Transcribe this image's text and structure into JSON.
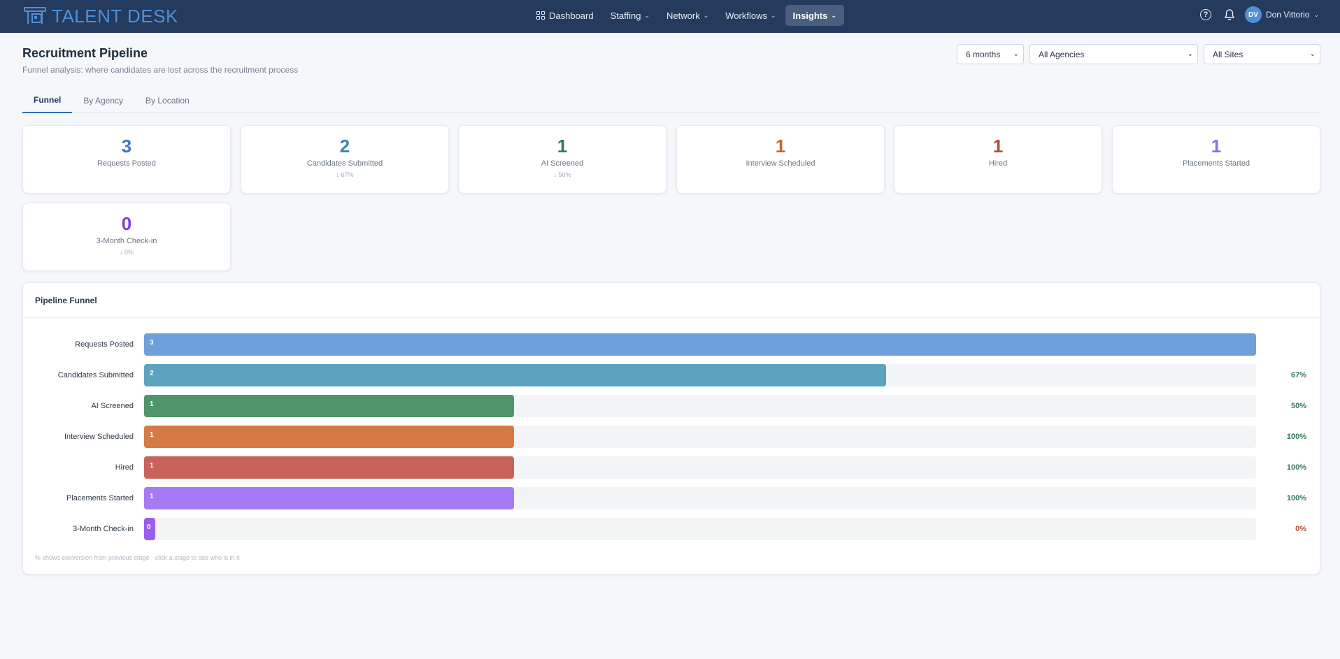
{
  "app": {
    "name": "TALENT DESK"
  },
  "nav": {
    "items": [
      {
        "label": "Dashboard",
        "icon": "grid-icon",
        "has_dropdown": false,
        "active": false
      },
      {
        "label": "Staffing",
        "has_dropdown": true,
        "active": false
      },
      {
        "label": "Network",
        "has_dropdown": true,
        "active": false
      },
      {
        "label": "Workflows",
        "has_dropdown": true,
        "active": false
      },
      {
        "label": "Insights",
        "has_dropdown": true,
        "active": true
      }
    ],
    "user": {
      "initials": "DV",
      "name": "Don Vittorio"
    },
    "help_icon": "question-circle-icon",
    "notification_icon": "bell-icon"
  },
  "page": {
    "title": "Recruitment Pipeline",
    "subtitle": "Funnel analysis: where candidates are lost across the recruitment process"
  },
  "filters": {
    "period": "6 months",
    "agency": "All Agencies",
    "site": "All Sites"
  },
  "tabs": [
    {
      "label": "Funnel",
      "active": true
    },
    {
      "label": "By Agency",
      "active": false
    },
    {
      "label": "By Location",
      "active": false
    }
  ],
  "stats": [
    {
      "value": "3",
      "label": "Requests Posted",
      "delta": "",
      "color": "#3f7bbf"
    },
    {
      "value": "2",
      "label": "Candidates Submitted",
      "delta": "↓ 67%",
      "color": "#3b8aa5"
    },
    {
      "value": "1",
      "label": "AI Screened",
      "delta": "↓ 50%",
      "color": "#2f7a52"
    },
    {
      "value": "1",
      "label": "Interview Scheduled",
      "delta": "",
      "color": "#c9652b"
    },
    {
      "value": "1",
      "label": "Hired",
      "delta": "",
      "color": "#b54a3e"
    },
    {
      "value": "1",
      "label": "Placements Started",
      "delta": "",
      "color": "#8c6fe0"
    },
    {
      "value": "0",
      "label": "3-Month Check-in",
      "delta": "↓ 0%",
      "color": "#7b3fd6"
    }
  ],
  "funnel": {
    "title": "Pipeline Funnel",
    "note": "% shows conversion from previous stage · click a stage to see who is in it",
    "stages": [
      {
        "label": "Requests Posted",
        "value": 3,
        "display": "3",
        "fill": 1.0,
        "pct": "",
        "color": "#6fa0dc",
        "pct_color": "#2f7a52"
      },
      {
        "label": "Candidates Submitted",
        "value": 2,
        "display": "2",
        "fill": 0.667,
        "pct": "67%",
        "color": "#5aa5bd",
        "pct_color": "#2f7a52"
      },
      {
        "label": "AI Screened",
        "value": 1,
        "display": "1",
        "fill": 0.333,
        "pct": "50%",
        "color": "#4f946a",
        "pct_color": "#2f7a52"
      },
      {
        "label": "Interview Scheduled",
        "value": 1,
        "display": "1",
        "fill": 0.333,
        "pct": "100%",
        "color": "#d57a44",
        "pct_color": "#2f7a52"
      },
      {
        "label": "Hired",
        "value": 1,
        "display": "1",
        "fill": 0.333,
        "pct": "100%",
        "color": "#c7635a",
        "pct_color": "#2f7a52"
      },
      {
        "label": "Placements Started",
        "value": 1,
        "display": "1",
        "fill": 0.333,
        "pct": "100%",
        "color": "#a57af2",
        "pct_color": "#2f7a52"
      },
      {
        "label": "3-Month Check-in",
        "value": 0,
        "display": "0",
        "fill": 0.01,
        "pct": "0%",
        "color": "#9b5cf0",
        "pct_color": "#b54a3e"
      }
    ]
  }
}
